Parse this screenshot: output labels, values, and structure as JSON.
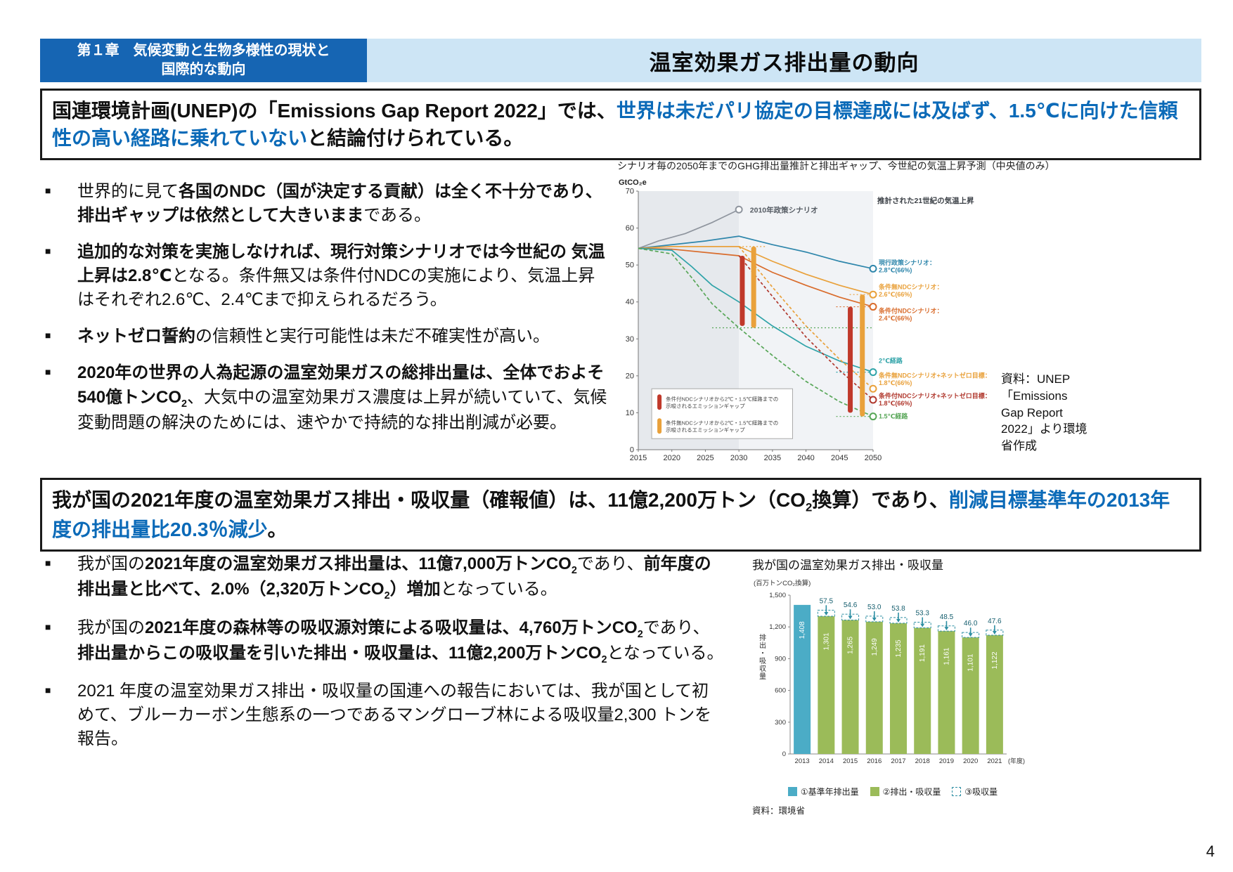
{
  "page": {
    "number": "4"
  },
  "header": {
    "chapter_line1": "第１章　気候変動と生物多様性の現状と",
    "chapter_line2": "国際的な動向",
    "title": "温室効果ガス排出量の動向"
  },
  "summary1": {
    "segments": [
      {
        "t": "国連環境計画(UNEP)の「Emissions Gap Report 2022」では、",
        "b": true
      },
      {
        "t": "世界は未だパリ協定の目標達成には及ばず、1.5℃に向けた信頼性の高い経路に乗れていない",
        "b": true,
        "c": "#0b6ab8"
      },
      {
        "t": "と結論付けられている。",
        "b": true
      }
    ]
  },
  "chart1": {
    "caption": "シナリオ毎の2050年までのGHG排出量推計と排出ギャップ、今世紀の気温上昇予測（中央値のみ）",
    "source": "資料：UNEP「Emissions Gap Report 2022」より環境省作成"
  },
  "bullets1": [
    {
      "segments": [
        {
          "t": "世界的に見て"
        },
        {
          "t": "各国のNDC（国が決定する貢献）は全く不十分であり、排出ギャップは依然として大きいまま",
          "b": true
        },
        {
          "t": "である。"
        }
      ]
    },
    {
      "segments": [
        {
          "t": "追加的な対策を実施しなければ、現行対策シナリオでは今世紀の 気温上昇は2.8℃",
          "b": true
        },
        {
          "t": "となる。条件無又は条件付NDCの実施により、気温上昇はそれぞれ2.6℃、2.4℃まで抑えられるだろう。"
        }
      ]
    },
    {
      "segments": [
        {
          "t": "ネットゼロ誓約",
          "b": true
        },
        {
          "t": "の信頼性と実行可能性は未だ不確実性が高い。"
        }
      ]
    },
    {
      "segments": [
        {
          "t": "2020年の世界の人為起源の温室効果ガスの総排出量は、全体でおよそ540億トンCO",
          "b": true
        },
        {
          "t": "2",
          "b": true,
          "sub": true
        },
        {
          "t": "、大気中の温室効果ガス濃度は上昇が続いていて、気候変動問題の解決のためには、速やかで持続的な排出削減が必要。"
        }
      ]
    }
  ],
  "summary2": {
    "segments": [
      {
        "t": "我が国の2021年度の温室効果ガス排出・吸収量（確報値）は、11億2,200万トン（CO",
        "b": true
      },
      {
        "t": "2",
        "b": true,
        "sub": true
      },
      {
        "t": "換算）であり、",
        "b": true
      },
      {
        "t": "削減目標基準年の2013年度の排出量比20.3％減少",
        "b": true,
        "c": "#0b6ab8"
      },
      {
        "t": "。",
        "b": true
      }
    ]
  },
  "bullets2": [
    {
      "segments": [
        {
          "t": "我が国の"
        },
        {
          "t": "2021年度の温室効果ガス排出量は、11億7,000万トンCO",
          "b": true
        },
        {
          "t": "2",
          "b": true,
          "sub": true
        },
        {
          "t": "であり、"
        },
        {
          "t": "前年度の排出量と比べて、2.0%（2,320万トンCO",
          "b": true
        },
        {
          "t": "2",
          "b": true,
          "sub": true
        },
        {
          "t": "）増加",
          "b": true
        },
        {
          "t": "となっている。"
        }
      ]
    },
    {
      "segments": [
        {
          "t": "我が国の"
        },
        {
          "t": "2021年度の森林等の吸収源対策による吸収量は、4,760万トンCO",
          "b": true
        },
        {
          "t": "2",
          "b": true,
          "sub": true
        },
        {
          "t": "であり、"
        },
        {
          "t": "排出量からこの吸収量を引いた排出・吸収量は、11億2,200万トンCO",
          "b": true
        },
        {
          "t": "2",
          "b": true,
          "sub": true
        },
        {
          "t": "となっている。"
        }
      ]
    },
    {
      "segments": [
        {
          "t": "2021 年度の温室効果ガス排出・吸収量の国連への報告においては、我が国として初めて、ブルーカーボン生態系の一つであるマングローブ林による吸収量2,300 トンを報告。"
        }
      ]
    }
  ],
  "chart_data": [
    {
      "type": "line",
      "name": "ghg-scenarios",
      "title": "シナリオ毎の2050年までのGHG排出量推計と排出ギャップ、今世紀の気温上昇予測（中央値のみ）",
      "ylabel": "GtCO₂e",
      "ylim": [
        0,
        70
      ],
      "yticks": [
        0,
        10,
        20,
        30,
        40,
        50,
        60,
        70
      ],
      "xlim": [
        2015,
        2050
      ],
      "xticks": [
        2015,
        2020,
        2025,
        2030,
        2035,
        2040,
        2045,
        2050
      ],
      "panels": [
        {
          "x0": 2015,
          "x1": 2030,
          "color": "#e6e9ed"
        },
        {
          "x0": 2030,
          "x1": 2050,
          "color": "#f1f3f6"
        }
      ],
      "series": [
        {
          "name": "2010年政策シナリオ",
          "color": "#8f959e",
          "points": [
            [
              2015,
              54.5
            ],
            [
              2018,
              56.5
            ],
            [
              2022,
              58.5
            ],
            [
              2026,
              61.5
            ],
            [
              2030,
              65
            ]
          ],
          "marker": true
        },
        {
          "name": "現行政策シナリオ",
          "color": "#2e86ab",
          "points": [
            [
              2015,
              54.5
            ],
            [
              2020,
              55.5
            ],
            [
              2025,
              56.5
            ],
            [
              2030,
              57.8
            ],
            [
              2035,
              55.5
            ],
            [
              2040,
              53.5
            ],
            [
              2045,
              51
            ],
            [
              2050,
              49
            ]
          ],
          "marker": true
        },
        {
          "name": "条件無NDCシナリオ",
          "color": "#e9a13b",
          "points": [
            [
              2015,
              54.5
            ],
            [
              2020,
              55
            ],
            [
              2030,
              55
            ],
            [
              2035,
              51
            ],
            [
              2040,
              47.5
            ],
            [
              2045,
              44.5
            ],
            [
              2050,
              42
            ]
          ],
          "marker": true
        },
        {
          "name": "条件付NDCシナリオ",
          "color": "#d96c2c",
          "points": [
            [
              2015,
              54.5
            ],
            [
              2020,
              54.3
            ],
            [
              2030,
              52.5
            ],
            [
              2035,
              48
            ],
            [
              2040,
              44.5
            ],
            [
              2045,
              41.3
            ],
            [
              2050,
              38.7
            ]
          ],
          "marker": true
        },
        {
          "name": "2℃経路",
          "color": "#2fa3a8",
          "points": [
            [
              2015,
              54.5
            ],
            [
              2020,
              54
            ],
            [
              2023,
              49.5
            ],
            [
              2026,
              44.5
            ],
            [
              2030,
              40
            ],
            [
              2035,
              33.5
            ],
            [
              2040,
              28
            ],
            [
              2045,
              24
            ],
            [
              2050,
              21
            ]
          ],
          "marker": true
        },
        {
          "name": "条件無NDCシナリオ+ネットゼロ目標",
          "color": "#e9a13b",
          "dash": "4 3",
          "points": [
            [
              2030,
              55
            ],
            [
              2035,
              44
            ],
            [
              2040,
              33.5
            ],
            [
              2045,
              24.5
            ],
            [
              2050,
              16.5
            ]
          ],
          "marker": true
        },
        {
          "name": "条件付NDCシナリオ+ネットゼロ目標",
          "color": "#b0372c",
          "dash": "4 3",
          "points": [
            [
              2030,
              52.5
            ],
            [
              2035,
              41.5
            ],
            [
              2040,
              30.5
            ],
            [
              2045,
              21.5
            ],
            [
              2050,
              13.5
            ]
          ],
          "marker": true
        },
        {
          "name": "1.5℃経路",
          "color": "#57a657",
          "dash": "5 3",
          "points": [
            [
              2015,
              54.5
            ],
            [
              2020,
              53
            ],
            [
              2023,
              46.5
            ],
            [
              2026,
              39.5
            ],
            [
              2030,
              33
            ],
            [
              2035,
              25.5
            ],
            [
              2040,
              18.5
            ],
            [
              2045,
              13
            ],
            [
              2050,
              9
            ]
          ],
          "marker": true
        }
      ],
      "gap_bars": [
        {
          "x": 2030.5,
          "y0": 33.5,
          "y1": 52.5,
          "color": "#c0392b"
        },
        {
          "x": 2032.2,
          "y0": 33,
          "y1": 55,
          "color": "#e9a13b"
        },
        {
          "x": 2046.6,
          "y0": 10,
          "y1": 38.7,
          "color": "#c0392b"
        },
        {
          "x": 2048.4,
          "y0": 9,
          "y1": 42,
          "color": "#e9a13b"
        }
      ],
      "guides": [
        {
          "y": 55,
          "x0": 2030,
          "x1": 2034,
          "color": "#e9a13b"
        },
        {
          "y": 33,
          "x0": 2026,
          "x1": 2050,
          "color": "#57a657"
        },
        {
          "y": 38.7,
          "x0": 2044.5,
          "x1": 2050,
          "color": "#d96c2c"
        },
        {
          "y": 42,
          "x0": 2046.5,
          "x1": 2050,
          "color": "#e9a13b"
        },
        {
          "y": 21,
          "x0": 2044.5,
          "x1": 2050,
          "color": "#2fa3a8"
        },
        {
          "y": 9,
          "x0": 2044.5,
          "x1": 2050,
          "color": "#57a657"
        }
      ],
      "annotations": [
        {
          "text": "2010年政策シナリオ",
          "x": 2030.8,
          "y": 65,
          "color": "#555b63",
          "bold": true
        },
        {
          "text": "推計された21世紀の気温上昇",
          "right": true,
          "y": 67.5,
          "color": "#3a3f45",
          "bold": true
        }
      ],
      "right_labels": [
        {
          "lines": [
            "現行政策シナリオ：",
            "2.8℃(66%)"
          ],
          "color": "#2e86ab",
          "y": 50
        },
        {
          "lines": [
            "条件無NDCシナリオ：",
            "2.6℃(66%)"
          ],
          "color": "#e9a13b",
          "y": 43.5
        },
        {
          "lines": [
            "条件付NDCシナリオ：",
            "2.4℃(66%)"
          ],
          "color": "#d96c2c",
          "y": 37
        },
        {
          "lines": [
            "2℃経路"
          ],
          "color": "#2fa3a8",
          "y": 23.5
        },
        {
          "lines": [
            "条件無NDCシナリオ+ネットゼロ目標：",
            "1.8℃(66%)"
          ],
          "color": "#e9a13b",
          "y": 19.5
        },
        {
          "lines": [
            "条件付NDCシナリオ+ネットゼロ目標：",
            "1.8℃(66%)"
          ],
          "color": "#b0372c",
          "y": 14
        },
        {
          "lines": [
            "1.5℃経路"
          ],
          "color": "#57a657",
          "y": 8.5
        }
      ],
      "legend": [
        {
          "color": "#c0392b",
          "lines": [
            "条件付NDCシナリオから2℃・1.5℃経路までの",
            "示唆されるエミッションギャップ"
          ]
        },
        {
          "color": "#e9a13b",
          "lines": [
            "条件無NDCシナリオから2℃・1.5℃経路までの",
            "示唆されるエミッションギャップ"
          ]
        }
      ]
    },
    {
      "type": "bar",
      "name": "japan-ghg",
      "title": "我が国の温室効果ガス排出・吸収量",
      "unit": "(百万トンCO₂換算)",
      "ylabel_vertical": "排出・吸収量",
      "xlabel": "(年度)",
      "ylim": [
        0,
        1500
      ],
      "yticks": [
        "0",
        "300",
        "600",
        "900",
        "1,200",
        "1,500"
      ],
      "ytick_values": [
        0,
        300,
        600,
        900,
        1200,
        1500
      ],
      "categories": [
        "2013",
        "2014",
        "2015",
        "2016",
        "2017",
        "2018",
        "2019",
        "2020",
        "2021"
      ],
      "values": [
        1408,
        1301,
        1265,
        1249,
        1235,
        1191,
        1161,
        1101,
        1122
      ],
      "value_labels": [
        "1,408",
        "1,301",
        "1,265",
        "1,249",
        "1,235",
        "1,191",
        "1,161",
        "1,101",
        "1,122"
      ],
      "absorptions": [
        null,
        57.5,
        54.6,
        53.0,
        53.8,
        53.3,
        48.5,
        46.0,
        47.6
      ],
      "absorption_labels": [
        "",
        "57.5",
        "54.6",
        "53.0",
        "53.8",
        "53.3",
        "48.5",
        "46.0",
        "47.6"
      ],
      "base_color": "#4bacc6",
      "bar_color": "#9bbb59",
      "absorb_color": "#2e8fa3",
      "legend": [
        {
          "label": "①基準年排出量",
          "swatch": "#4bacc6"
        },
        {
          "label": "②排出・吸収量",
          "swatch": "#9bbb59"
        },
        {
          "label": "③吸収量",
          "swatch": "dashed"
        }
      ],
      "source": "資料：環境省"
    }
  ]
}
